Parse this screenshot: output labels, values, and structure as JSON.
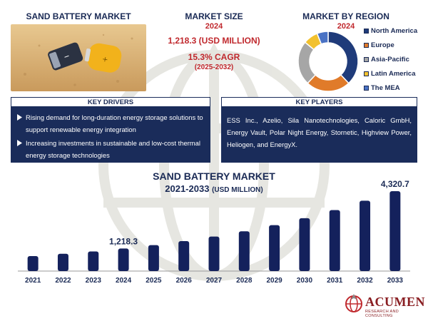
{
  "header": {
    "left_title": "SAND BATTERY MARKET",
    "center_title": "MARKET SIZE",
    "center_year": "2024",
    "market_value": "1,218.3 (USD MILLION)",
    "cagr": "15.3% CAGR",
    "cagr_period": "(2025-2032)",
    "right_title": "MARKET BY REGION",
    "right_year": "2024"
  },
  "region_legend": [
    {
      "label": "North America",
      "color": "#1f3b7a"
    },
    {
      "label": "Europe",
      "color": "#e07b2a"
    },
    {
      "label": "Asia-Pacific",
      "color": "#a6a6a6"
    },
    {
      "label": "Latin America",
      "color": "#f2c12e"
    },
    {
      "label": "The MEA",
      "color": "#4a72c4"
    }
  ],
  "region_donut": {
    "shares": [
      38,
      24,
      24,
      8,
      6
    ]
  },
  "drivers": {
    "title": "KEY DRIVERS",
    "items": [
      "Rising demand for long-duration energy storage solutions to support renewable energy integration",
      "Increasing investments in sustainable and low-cost thermal energy storage technologies"
    ]
  },
  "players": {
    "title": "KEY PLAYERS",
    "text": "ESS Inc., Azelio, Sila Nanotechnologies, Caloric GmbH, Energy Vault, Polar Night Energy, Stornetic, Highview Power, Heliogen, and EnergyX."
  },
  "chart_title": {
    "line1": "SAND BATTERY MARKET",
    "line2": "2021-2033",
    "unit": "(USD MILLION)"
  },
  "chart_data": {
    "type": "bar",
    "title": "SAND BATTERY MARKET 2021-2033 (USD MILLION)",
    "categories": [
      "2021",
      "2022",
      "2023",
      "2024",
      "2025",
      "2026",
      "2027",
      "2028",
      "2029",
      "2030",
      "2031",
      "2032",
      "2033"
    ],
    "values": [
      810,
      935,
      1060,
      1218.3,
      1404.7,
      1619.6,
      1867.4,
      2153.1,
      2482.5,
      2862.3,
      3300.2,
      3805.1,
      4320.7
    ],
    "data_labels": [
      {
        "index": 3,
        "text": "1,218.3"
      },
      {
        "index": 12,
        "text": "4,320.7"
      }
    ],
    "ylim": [
      0,
      4400
    ],
    "grid": false,
    "bar_color": "#14215c"
  },
  "logo": {
    "name": "ACUMEN",
    "tagline": "RESEARCH AND CONSULTING"
  }
}
